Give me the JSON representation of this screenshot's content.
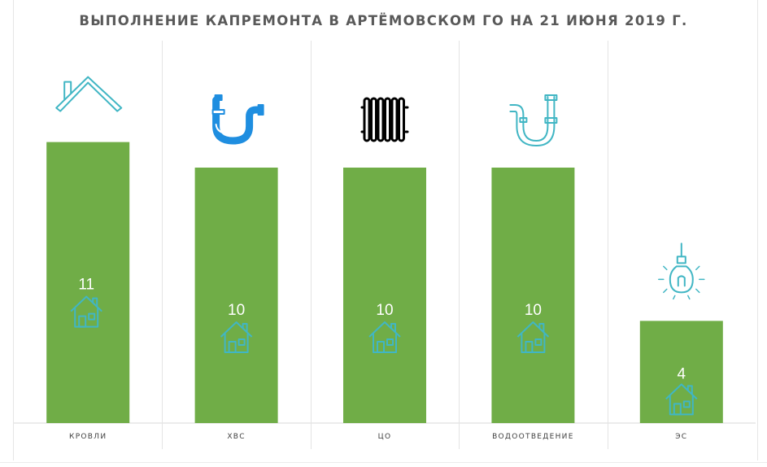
{
  "chart_data": {
    "type": "bar",
    "title": "ВЫПОЛНЕНИЕ КАПРЕМОНТА В АРТЁМОВСКОМ ГО НА 21 ИЮНЯ 2019 Г.",
    "categories": [
      "КРОВЛИ",
      "ХВС",
      "ЦО",
      "ВОДООТВЕДЕНИЕ",
      "ЭС"
    ],
    "values": [
      11,
      10,
      10,
      10,
      4
    ],
    "icons": [
      "roof-icon",
      "pipe-icon",
      "radiator-icon",
      "drain-pipe-icon",
      "light-bulb-icon"
    ],
    "bar_color": "#70ad47",
    "icon_color": "#41b6c4",
    "ylim": [
      0,
      15
    ],
    "grid": false,
    "legend": "none"
  }
}
